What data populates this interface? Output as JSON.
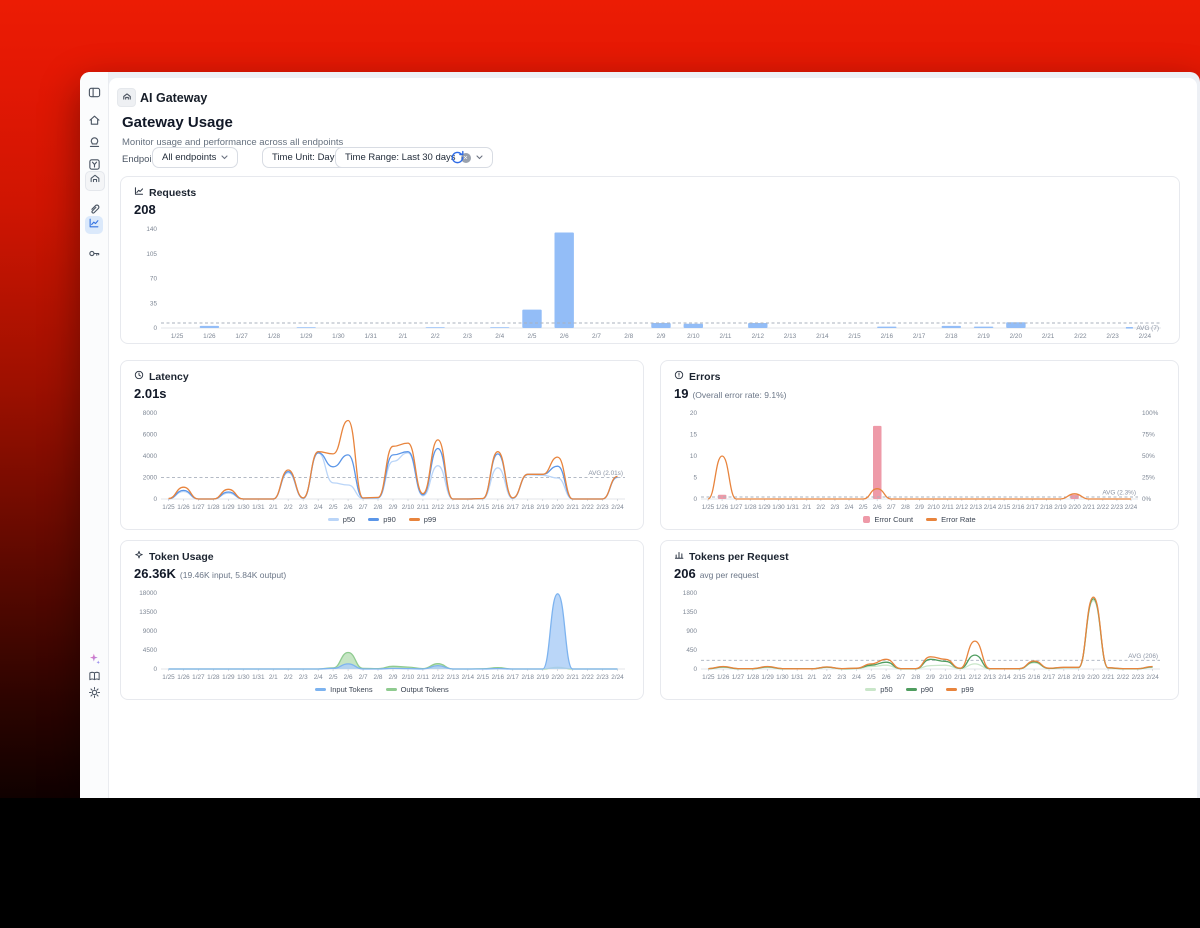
{
  "colors": {
    "brand_red": "#e81a02",
    "accent_blue": "#2e6be6",
    "active_sidebar_bg": "#dbe9fb"
  },
  "sidebar": {
    "top_icons": [
      "panel-toggle",
      "home",
      "stamp",
      "labels",
      "gateway",
      "paperclip",
      "analytics",
      "api-keys"
    ],
    "bottom_icons": [
      "ai-sparkle",
      "docs",
      "settings"
    ],
    "active_item": "analytics"
  },
  "header": {
    "app_title": "AI Gateway",
    "page_title": "Gateway Usage",
    "subtitle": "Monitor usage and performance across all endpoints"
  },
  "filters": {
    "endpoint_label": "Endpoint:",
    "endpoint_value": "All endpoints",
    "time_unit_label": "Time Unit: Day",
    "time_range_label": "Time Range: Last 30 days"
  },
  "charts": {
    "requests": {
      "title": "Requests",
      "value": "208",
      "chart_data": {
        "type": "bar",
        "title": "Requests",
        "categories": [
          "1/25",
          "1/26",
          "1/27",
          "1/28",
          "1/29",
          "1/30",
          "1/31",
          "2/1",
          "2/2",
          "2/3",
          "2/4",
          "2/5",
          "2/6",
          "2/7",
          "2/8",
          "2/9",
          "2/10",
          "2/11",
          "2/12",
          "2/13",
          "2/14",
          "2/15",
          "2/16",
          "2/17",
          "2/18",
          "2/19",
          "2/20",
          "2/21",
          "2/22",
          "2/23",
          "2/24"
        ],
        "values": [
          0,
          3,
          0,
          0,
          1,
          0,
          0,
          0,
          1,
          0,
          1,
          26,
          135,
          0,
          0,
          7,
          6,
          0,
          7,
          0,
          0,
          0,
          2,
          0,
          3,
          2,
          8,
          0,
          0,
          0,
          0
        ],
        "color": "#93bdf7",
        "ylim": [
          0,
          140
        ],
        "yticks": [
          0,
          35,
          70,
          105,
          140
        ],
        "avg": {
          "value": 7,
          "label": "AVG (7)"
        }
      }
    },
    "latency": {
      "title": "Latency",
      "value": "2.01s",
      "chart_data": {
        "type": "line",
        "title": "Latency (ms)",
        "categories": [
          "1/25",
          "1/26",
          "1/27",
          "1/28",
          "1/29",
          "1/30",
          "1/31",
          "2/1",
          "2/2",
          "2/3",
          "2/4",
          "2/5",
          "2/6",
          "2/7",
          "2/8",
          "2/9",
          "2/10",
          "2/11",
          "2/12",
          "2/13",
          "2/14",
          "2/15",
          "2/16",
          "2/17",
          "2/18",
          "2/19",
          "2/20",
          "2/21",
          "2/22",
          "2/23",
          "2/24"
        ],
        "series": [
          {
            "name": "p50",
            "color": "#bad5f8",
            "values": [
              20,
              700,
              0,
              0,
              550,
              0,
              0,
              0,
              2450,
              60,
              4300,
              1500,
              1300,
              60,
              100,
              3500,
              4300,
              300,
              3100,
              0,
              0,
              30,
              2900,
              60,
              2250,
              2200,
              1950,
              0,
              0,
              0,
              2000
            ]
          },
          {
            "name": "p90",
            "color": "#5b96e8",
            "values": [
              30,
              800,
              0,
              0,
              650,
              0,
              0,
              0,
              2550,
              80,
              4300,
              3000,
              4100,
              80,
              120,
              4100,
              4400,
              400,
              4700,
              0,
              0,
              40,
              4200,
              80,
              2300,
              2300,
              3050,
              0,
              0,
              0,
              2050
            ]
          },
          {
            "name": "p99",
            "color": "#e8843d",
            "values": [
              50,
              1100,
              0,
              0,
              900,
              0,
              0,
              0,
              2700,
              100,
              4400,
              4200,
              7300,
              100,
              150,
              4900,
              5200,
              500,
              5500,
              0,
              0,
              50,
              4400,
              100,
              2300,
              2300,
              3900,
              0,
              0,
              0,
              2100
            ]
          }
        ],
        "ylim": [
          0,
          8000
        ],
        "yticks": [
          0,
          2000,
          4000,
          6000,
          8000
        ],
        "avg": {
          "value": 2010,
          "label": "AVG (2.01s)"
        },
        "legend": [
          {
            "label": "p50",
            "color": "#bad5f8",
            "swatch": "line"
          },
          {
            "label": "p90",
            "color": "#5b96e8",
            "swatch": "line"
          },
          {
            "label": "p99",
            "color": "#e8843d",
            "swatch": "line"
          }
        ]
      }
    },
    "errors": {
      "title": "Errors",
      "value": "19",
      "value_suffix": "(Overall error rate: 9.1%)",
      "chart_data": {
        "type": "bar+line",
        "title": "Errors",
        "categories": [
          "1/25",
          "1/26",
          "1/27",
          "1/28",
          "1/29",
          "1/30",
          "1/31",
          "2/1",
          "2/2",
          "2/3",
          "2/4",
          "2/5",
          "2/6",
          "2/7",
          "2/8",
          "2/9",
          "2/10",
          "2/11",
          "2/12",
          "2/13",
          "2/14",
          "2/15",
          "2/16",
          "2/17",
          "2/18",
          "2/19",
          "2/20",
          "2/21",
          "2/22",
          "2/23",
          "2/24"
        ],
        "bars": {
          "name": "Error Count",
          "color": "#ee9aa8",
          "values": [
            0,
            1,
            0,
            0,
            0,
            0,
            0,
            0,
            0,
            0,
            0,
            0,
            17,
            0,
            0,
            0,
            0,
            0,
            0,
            0,
            0,
            0,
            0,
            0,
            0,
            0,
            1,
            0,
            0,
            0,
            0
          ]
        },
        "line": {
          "name": "Error Rate",
          "color": "#e8843d",
          "axis": "right",
          "values": [
            0,
            50,
            0,
            0,
            0,
            0,
            0,
            0,
            0,
            0,
            0,
            0,
            12,
            0,
            0,
            0,
            0,
            0,
            0,
            0,
            0,
            0,
            0,
            0,
            0,
            0,
            6,
            0,
            0,
            0,
            0
          ]
        },
        "ylim": [
          0,
          20
        ],
        "yticks": [
          0,
          5,
          10,
          15,
          20
        ],
        "right_ylim": [
          0,
          100
        ],
        "right_yticks": [
          {
            "label": "0%",
            "value": 0
          },
          {
            "label": "25%",
            "value": 25
          },
          {
            "label": "50%",
            "value": 50
          },
          {
            "label": "75%",
            "value": 75
          },
          {
            "label": "100%",
            "value": 100
          }
        ],
        "avg": {
          "value": 2.3,
          "axis": "right",
          "label": "AVG (2.3%)"
        },
        "legend": [
          {
            "label": "Error Count",
            "color": "#ee9aa8",
            "swatch": "square"
          },
          {
            "label": "Error Rate",
            "color": "#e8843d",
            "swatch": "line"
          }
        ]
      }
    },
    "token_usage": {
      "title": "Token Usage",
      "value": "26.36K",
      "value_suffix": "(19.46K input, 5.84K output)",
      "chart_data": {
        "type": "area",
        "title": "Token Usage",
        "categories": [
          "1/25",
          "1/26",
          "1/27",
          "1/28",
          "1/29",
          "1/30",
          "1/31",
          "2/1",
          "2/2",
          "2/3",
          "2/4",
          "2/5",
          "2/6",
          "2/7",
          "2/8",
          "2/9",
          "2/10",
          "2/11",
          "2/12",
          "2/13",
          "2/14",
          "2/15",
          "2/16",
          "2/17",
          "2/18",
          "2/19",
          "2/20",
          "2/21",
          "2/22",
          "2/23",
          "2/24"
        ],
        "series": [
          {
            "name": "Output Tokens",
            "color": "#8fcb90",
            "fill": "#bce0ba",
            "values": [
              0,
              0,
              0,
              0,
              0,
              0,
              0,
              0,
              0,
              0,
              0,
              250,
              3900,
              150,
              100,
              650,
              450,
              100,
              1250,
              0,
              0,
              50,
              300,
              0,
              0,
              0,
              400,
              0,
              0,
              0,
              0
            ]
          },
          {
            "name": "Input Tokens",
            "color": "#7db3ef",
            "fill": "#aecff7",
            "values": [
              0,
              0,
              0,
              0,
              0,
              0,
              0,
              0,
              0,
              0,
              0,
              150,
              1200,
              0,
              0,
              150,
              100,
              0,
              800,
              0,
              0,
              0,
              100,
              0,
              0,
              0,
              17800,
              0,
              0,
              0,
              0
            ]
          }
        ],
        "ylim": [
          0,
          18000
        ],
        "yticks": [
          0,
          4500,
          9000,
          13500,
          18000
        ],
        "legend": [
          {
            "label": "Input Tokens",
            "color": "#7db3ef",
            "swatch": "line"
          },
          {
            "label": "Output Tokens",
            "color": "#8fcb90",
            "swatch": "line"
          }
        ]
      }
    },
    "tokens_per_request": {
      "title": "Tokens per Request",
      "value": "206",
      "value_suffix": "avg per request",
      "chart_data": {
        "type": "line",
        "title": "Tokens per Request",
        "categories": [
          "1/25",
          "1/26",
          "1/27",
          "1/28",
          "1/29",
          "1/30",
          "1/31",
          "2/1",
          "2/2",
          "2/3",
          "2/4",
          "2/5",
          "2/6",
          "2/7",
          "2/8",
          "2/9",
          "2/10",
          "2/11",
          "2/12",
          "2/13",
          "2/14",
          "2/15",
          "2/16",
          "2/17",
          "2/18",
          "2/19",
          "2/20",
          "2/21",
          "2/22",
          "2/23",
          "2/24"
        ],
        "series": [
          {
            "name": "p50",
            "color": "#c9e6c9",
            "values": [
              5,
              40,
              5,
              5,
              40,
              5,
              3,
              3,
              40,
              5,
              10,
              60,
              90,
              5,
              5,
              80,
              90,
              10,
              120,
              5,
              3,
              5,
              150,
              10,
              30,
              30,
              1620,
              20,
              5,
              5,
              40
            ]
          },
          {
            "name": "p90",
            "color": "#4f9d5f",
            "values": [
              8,
              50,
              8,
              8,
              50,
              8,
              4,
              4,
              45,
              8,
              15,
              90,
              160,
              8,
              8,
              230,
              180,
              15,
              330,
              8,
              4,
              8,
              170,
              15,
              35,
              35,
              1660,
              25,
              8,
              8,
              50
            ]
          },
          {
            "name": "p99",
            "color": "#e8843d",
            "values": [
              10,
              60,
              10,
              10,
              60,
              10,
              5,
              5,
              50,
              10,
              20,
              120,
              230,
              10,
              10,
              290,
              230,
              20,
              660,
              10,
              5,
              10,
              190,
              20,
              40,
              40,
              1700,
              30,
              10,
              10,
              60
            ]
          }
        ],
        "ylim": [
          0,
          1800
        ],
        "yticks": [
          0,
          450,
          900,
          1350,
          1800
        ],
        "avg": {
          "value": 206,
          "label": "AVG (206)"
        },
        "legend": [
          {
            "label": "p50",
            "color": "#c9e6c9",
            "swatch": "line"
          },
          {
            "label": "p90",
            "color": "#4f9d5f",
            "swatch": "line"
          },
          {
            "label": "p99",
            "color": "#e8843d",
            "swatch": "line"
          }
        ]
      }
    }
  }
}
